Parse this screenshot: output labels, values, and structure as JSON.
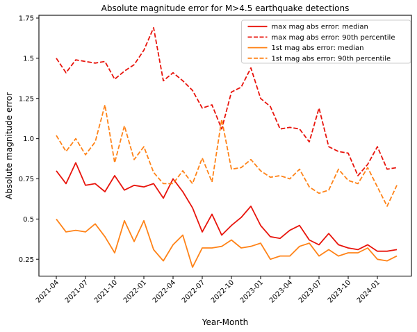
{
  "title": "Absolute magnitude error for M>4.5 earthquake detections",
  "axes": {
    "xlabel": "Year-Month",
    "ylabel": "Absolute magnitude error",
    "x_tick_labels": [
      "2021-04",
      "2021-07",
      "2021-10",
      "2022-01",
      "2022-04",
      "2022-07",
      "2022-10",
      "2023-01",
      "2023-04",
      "2023-07",
      "2023-10",
      "2024-01"
    ],
    "y_tick_labels": [
      "0.25",
      "0.5",
      "0.75",
      "1.0",
      "1.25",
      "1.5",
      "1.75"
    ],
    "y_tick_values": [
      0.25,
      0.5,
      0.75,
      1.0,
      1.25,
      1.5,
      1.75
    ]
  },
  "colors": {
    "max_red": "#e8140c",
    "first_orange": "#ff8318",
    "spine": "#1a1a1a",
    "text": "#000000",
    "legend_border": "#cccccc",
    "legend_bg": "#ffffff"
  },
  "chart_data": {
    "type": "line",
    "title": "Absolute magnitude error for M>4.5 earthquake detections",
    "xlabel": "Year-Month",
    "ylabel": "Absolute magnitude error",
    "ylim": [
      0.147,
      1.767
    ],
    "grid": false,
    "legend_position": "upper right",
    "x": [
      "2021-04",
      "2021-05",
      "2021-06",
      "2021-07",
      "2021-08",
      "2021-09",
      "2021-10",
      "2021-11",
      "2021-12",
      "2022-01",
      "2022-02",
      "2022-03",
      "2022-04",
      "2022-05",
      "2022-06",
      "2022-07",
      "2022-08",
      "2022-09",
      "2022-10",
      "2022-11",
      "2022-12",
      "2023-01",
      "2023-02",
      "2023-03",
      "2023-04",
      "2023-05",
      "2023-06",
      "2023-07",
      "2023-08",
      "2023-09",
      "2023-10",
      "2023-11",
      "2023-12",
      "2024-01",
      "2024-02",
      "2024-03"
    ],
    "series": [
      {
        "name": "max mag abs error: median",
        "style": "solid",
        "color": "#e8140c",
        "values": [
          0.8,
          0.72,
          0.85,
          0.71,
          0.72,
          0.67,
          0.77,
          0.68,
          0.71,
          0.7,
          0.72,
          0.63,
          0.75,
          0.67,
          0.57,
          0.42,
          0.53,
          0.4,
          0.46,
          0.51,
          0.58,
          0.46,
          0.39,
          0.38,
          0.43,
          0.46,
          0.37,
          0.34,
          0.41,
          0.34,
          0.32,
          0.31,
          0.34,
          0.3,
          0.3,
          0.31
        ]
      },
      {
        "name": "max mag abs error: 90th percentile",
        "style": "dashed",
        "color": "#e8140c",
        "values": [
          1.5,
          1.41,
          1.49,
          1.48,
          1.47,
          1.48,
          1.37,
          1.42,
          1.46,
          1.55,
          1.69,
          1.36,
          1.41,
          1.36,
          1.3,
          1.19,
          1.21,
          1.06,
          1.29,
          1.32,
          1.44,
          1.25,
          1.2,
          1.06,
          1.07,
          1.06,
          0.98,
          1.19,
          0.95,
          0.92,
          0.91,
          0.77,
          0.84,
          0.95,
          0.81,
          0.82
        ]
      },
      {
        "name": "1st mag abs error: median",
        "style": "solid",
        "color": "#ff8318",
        "values": [
          0.5,
          0.42,
          0.43,
          0.42,
          0.47,
          0.39,
          0.29,
          0.49,
          0.36,
          0.49,
          0.31,
          0.24,
          0.34,
          0.4,
          0.2,
          0.32,
          0.32,
          0.33,
          0.37,
          0.32,
          0.33,
          0.35,
          0.25,
          0.27,
          0.27,
          0.33,
          0.35,
          0.27,
          0.31,
          0.27,
          0.29,
          0.29,
          0.32,
          0.25,
          0.24,
          0.27
        ]
      },
      {
        "name": "1st mag abs error: 90th percentile",
        "style": "dashed",
        "color": "#ff8318",
        "values": [
          1.02,
          0.92,
          1.0,
          0.9,
          0.98,
          1.21,
          0.85,
          1.08,
          0.87,
          0.95,
          0.79,
          0.72,
          0.72,
          0.8,
          0.72,
          0.88,
          0.73,
          1.12,
          0.81,
          0.82,
          0.87,
          0.8,
          0.76,
          0.77,
          0.75,
          0.81,
          0.7,
          0.66,
          0.68,
          0.81,
          0.74,
          0.72,
          0.82,
          0.7,
          0.58,
          0.71
        ]
      }
    ]
  }
}
